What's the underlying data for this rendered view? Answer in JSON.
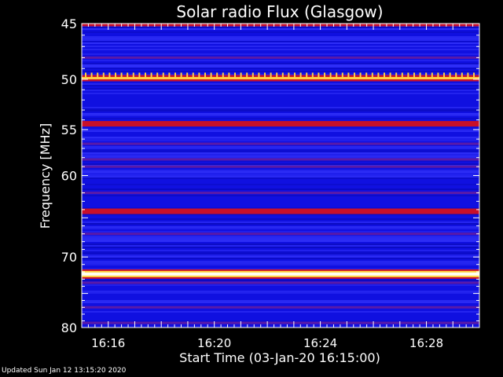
{
  "chart_data": {
    "type": "heatmap",
    "title": "Solar radio Flux (Glasgow)",
    "xlabel": "Start Time (03-Jan-20 16:15:00)",
    "ylabel": "Frequency [MHz]",
    "x_ticks": [
      "16:16",
      "16:20",
      "16:24",
      "16:28"
    ],
    "x_tick_minutes": [
      16,
      20,
      24,
      28
    ],
    "x_range_minutes": [
      15.0,
      30.0
    ],
    "y_ticks": [
      "45",
      "50",
      "55",
      "60",
      "70",
      "80"
    ],
    "y_tick_values": [
      45,
      50,
      55,
      60,
      70,
      80
    ],
    "y_range_mhz": [
      45,
      80
    ],
    "y_inverted": true,
    "colormap": "blue-red-yellow-white",
    "bands": [
      {
        "mhz": 45.0,
        "level": "red"
      },
      {
        "mhz": 48.0,
        "level": "purple"
      },
      {
        "mhz": 49.9,
        "level": "yellow"
      },
      {
        "mhz": 54.4,
        "level": "red"
      },
      {
        "mhz": 56.5,
        "level": "purple"
      },
      {
        "mhz": 58.2,
        "level": "purple"
      },
      {
        "mhz": 59.0,
        "level": "purple"
      },
      {
        "mhz": 62.0,
        "level": "purple"
      },
      {
        "mhz": 64.2,
        "level": "red"
      },
      {
        "mhz": 67.0,
        "level": "purple"
      },
      {
        "mhz": 72.3,
        "level": "white"
      },
      {
        "mhz": 73.5,
        "level": "purple"
      },
      {
        "mhz": 77.0,
        "level": "purple"
      },
      {
        "mhz": 79.3,
        "level": "purple"
      }
    ],
    "grid": false
  },
  "footer": "Updated Sun Jan 12 13:15:20 2020",
  "colors": {
    "background": "#000000",
    "plot_base": "#1010e0",
    "blue_light": "#3a3aff",
    "purple": "#5a1aa8",
    "red": "#c8102a",
    "yellow": "#ffd040",
    "white": "#fffff0",
    "axis": "#ffffff"
  }
}
